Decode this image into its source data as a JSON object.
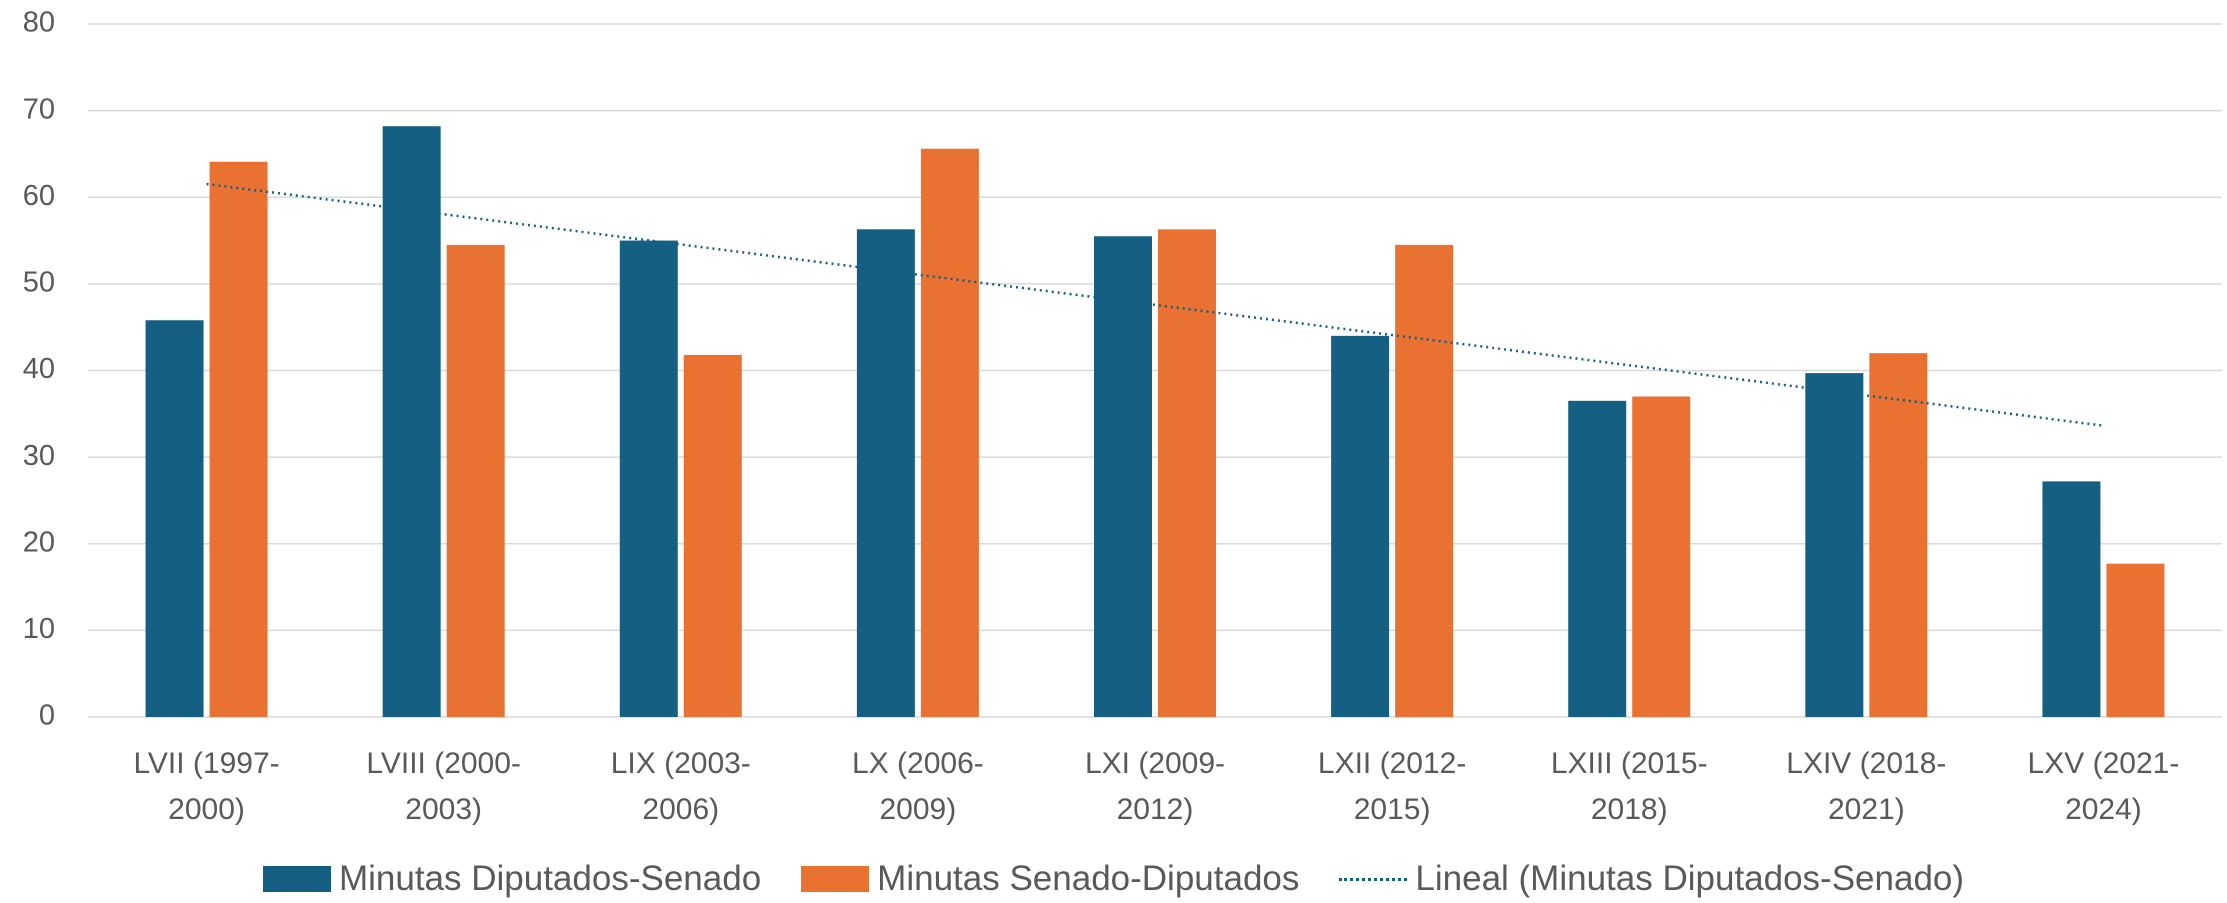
{
  "chart_data": {
    "type": "bar",
    "categories": [
      "LVII (1997-2000)",
      "LVIII (2000-2003)",
      "LIX (2003-2006)",
      "LX (2006-2009)",
      "LXI (2009-2012)",
      "LXII (2012-2015)",
      "LXIII (2015-2018)",
      "LXIV (2018-2021)",
      "LXV (2021-2024)"
    ],
    "series": [
      {
        "name": "Minutas Diputados-Senado",
        "color": "#156082",
        "values": [
          45.8,
          68.2,
          55,
          56.3,
          55.5,
          44,
          36.5,
          39.7,
          27.2
        ]
      },
      {
        "name": "Minutas Senado-Diputados",
        "color": "#e97132",
        "values": [
          64.1,
          54.5,
          41.8,
          65.6,
          56.3,
          54.5,
          37,
          42,
          17.7
        ]
      }
    ],
    "trendline": {
      "label": "Lineal (Minutas Diputados-Senado)",
      "series": 0,
      "color": "#156082"
    },
    "ylim": [
      0,
      80
    ],
    "yticks": [
      0,
      10,
      20,
      30,
      40,
      50,
      60,
      70,
      80
    ],
    "grid": true,
    "legend": "bottom"
  }
}
